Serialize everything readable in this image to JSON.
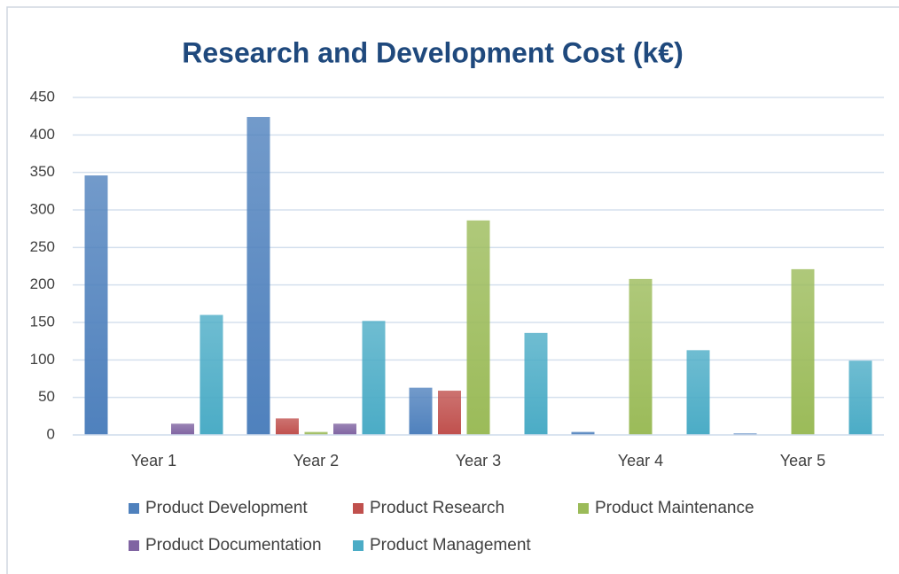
{
  "chart_data": {
    "type": "bar",
    "title": "Research and Development Cost (k€)",
    "categories": [
      "Year 1",
      "Year 2",
      "Year 3",
      "Year 4",
      "Year 5"
    ],
    "series": [
      {
        "name": "Product Development",
        "color": "#4f81bd",
        "values": [
          346,
          424,
          63,
          4,
          2
        ]
      },
      {
        "name": "Product Research",
        "color": "#c0504d",
        "values": [
          0,
          22,
          59,
          0,
          0
        ]
      },
      {
        "name": "Product Maintenance",
        "color": "#9bbb59",
        "values": [
          0,
          4,
          286,
          208,
          221
        ]
      },
      {
        "name": "Product Documentation",
        "color": "#8064a2",
        "values": [
          15,
          15,
          0,
          0,
          0
        ]
      },
      {
        "name": "Product Management",
        "color": "#4bacc6",
        "values": [
          160,
          152,
          136,
          113,
          99
        ]
      }
    ],
    "ylim": [
      0,
      450
    ],
    "yticks": [
      0,
      50,
      100,
      150,
      200,
      250,
      300,
      350,
      400,
      450
    ],
    "grid": true,
    "legend": "bottom"
  }
}
